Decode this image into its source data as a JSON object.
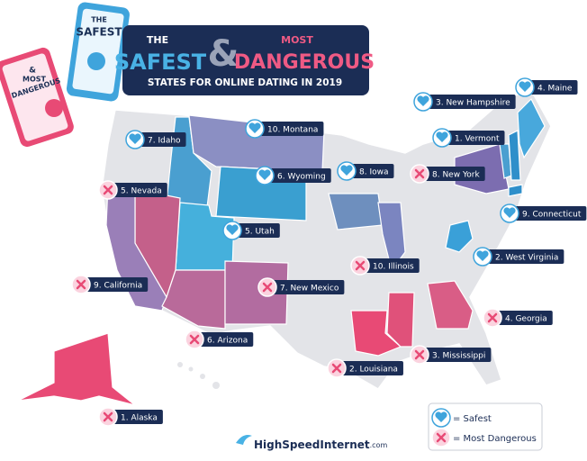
{
  "title": {
    "the": "THE",
    "safest": "SAFEST",
    "amp": "&",
    "most": "MOST",
    "dangerous": "DANGEROUS",
    "subtitle": "STATES FOR ONLINE DATING IN 2019"
  },
  "phones": {
    "safe_top": "THE",
    "safe_main": "SAFEST",
    "danger_amp": "&",
    "danger_most": "MOST",
    "danger_main": "DANGEROUS"
  },
  "labels": [
    {
      "text": "4. Maine",
      "kind": "safe"
    },
    {
      "text": "3. New Hampshire",
      "kind": "safe"
    },
    {
      "text": "1. Vermont",
      "kind": "safe"
    },
    {
      "text": "10. Montana",
      "kind": "safe"
    },
    {
      "text": "7. Idaho",
      "kind": "safe"
    },
    {
      "text": "6. Wyoming",
      "kind": "safe"
    },
    {
      "text": "8. Iowa",
      "kind": "safe"
    },
    {
      "text": "5. Utah",
      "kind": "safe"
    },
    {
      "text": "9. Connecticut",
      "kind": "safe"
    },
    {
      "text": "2. West Virginia",
      "kind": "safe"
    },
    {
      "text": "8. New York",
      "kind": "dangerous"
    },
    {
      "text": "5. Nevada",
      "kind": "dangerous"
    },
    {
      "text": "10. Illinois",
      "kind": "dangerous"
    },
    {
      "text": "9. California",
      "kind": "dangerous"
    },
    {
      "text": "7. New Mexico",
      "kind": "dangerous"
    },
    {
      "text": "4. Georgia",
      "kind": "dangerous"
    },
    {
      "text": "6. Arizona",
      "kind": "dangerous"
    },
    {
      "text": "3. Mississippi",
      "kind": "dangerous"
    },
    {
      "text": "2. Louisiana",
      "kind": "dangerous"
    },
    {
      "text": "1. Alaska",
      "kind": "dangerous"
    }
  ],
  "legend": [
    {
      "text": "= Safest",
      "kind": "safe"
    },
    {
      "text": "= Most Dangerous",
      "kind": "dangerous"
    }
  ],
  "logo": {
    "name": "HighSpeedInternet",
    "suffix": ".com"
  }
}
